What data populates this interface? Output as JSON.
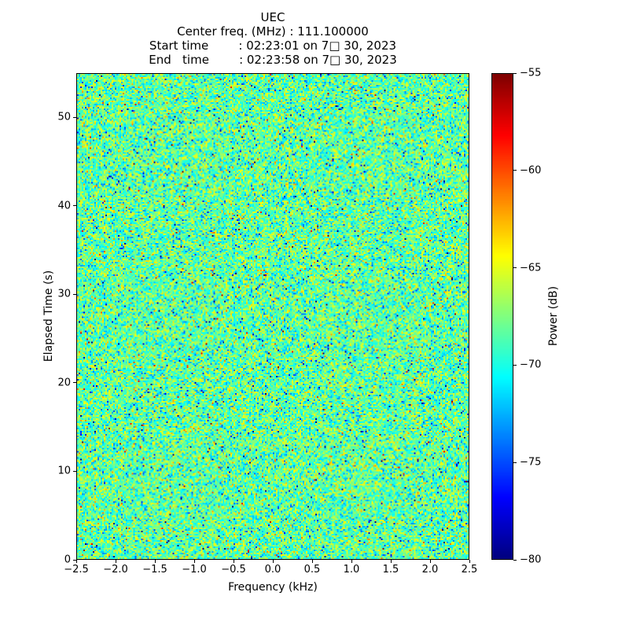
{
  "chart_data": {
    "type": "heatmap",
    "title": "UEC",
    "subtitle_lines": [
      "Center freq. (MHz) : 111.100000",
      "Start time        : 02:23:01 on 7□ 30, 2023",
      "End   time        : 02:23:58 on 7□ 30, 2023"
    ],
    "xlabel": "Frequency (kHz)",
    "ylabel": "Elapsed Time (s)",
    "xlim": [
      -2.5,
      2.5
    ],
    "ylim": [
      0,
      55
    ],
    "x_ticks": [
      -2.5,
      -2.0,
      -1.5,
      -1.0,
      -0.5,
      0.0,
      0.5,
      1.0,
      1.5,
      2.0,
      2.5
    ],
    "x_tick_labels": [
      "−2.5",
      "−2.0",
      "−1.5",
      "−1.0",
      "−0.5",
      "0.0",
      "0.5",
      "1.0",
      "1.5",
      "2.0",
      "2.5"
    ],
    "y_ticks": [
      0,
      10,
      20,
      30,
      40,
      50
    ],
    "y_tick_labels": [
      "0",
      "10",
      "20",
      "30",
      "40",
      "50"
    ],
    "grid": false,
    "colormap": "jet",
    "legend": "none",
    "colorbar": {
      "label": "Power (dB)",
      "position": "right",
      "vmin": -80,
      "vmax": -55,
      "ticks": [
        -55,
        -60,
        -65,
        -70,
        -75,
        -80
      ],
      "tick_labels": [
        "−55",
        "−60",
        "−65",
        "−70",
        "−75",
        "−80"
      ]
    },
    "data_description": {
      "content": "uniform wideband noise floor across all frequencies and times, no visible signal features",
      "mean_power_db": -68.3,
      "std_power_db": 2.4,
      "low_outlier_fraction": 0.015,
      "high_outlier_fraction": 0.004,
      "grid_bins": {
        "freq": 250,
        "time": 310
      }
    }
  }
}
